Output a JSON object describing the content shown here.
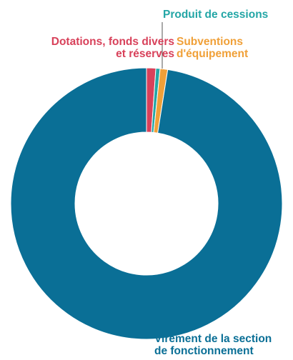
{
  "chart_data": {
    "type": "pie",
    "subtype": "donut",
    "title": "",
    "legend": "none",
    "categories": [
      "Dotations, fonds divers\net réserves",
      "Produit de cessions",
      "Subventions\nd'équipement",
      "Virement de la section\nde fonctionnement"
    ],
    "values": [
      1.1,
      0.5,
      0.9,
      97.5
    ],
    "unit": "%",
    "colors": [
      "#d8415a",
      "#23a6a6",
      "#f0a038",
      "#0a6f96"
    ]
  }
}
